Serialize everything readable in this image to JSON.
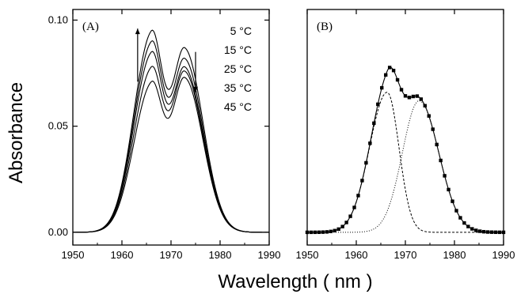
{
  "figure": {
    "ylabel": "Absorbance",
    "xlabel": "Wavelength ( nm )"
  },
  "chart_data": [
    {
      "type": "line",
      "panel_label": "(A)",
      "xlim": [
        1950,
        1990
      ],
      "ylim": [
        -0.006,
        0.105
      ],
      "x_ticks": [
        "1950",
        "1960",
        "1970",
        "1980",
        "1990"
      ],
      "y_ticks": [
        "0.00",
        "0.05",
        "0.10"
      ],
      "y_tick_values": [
        0.0,
        0.05,
        0.1
      ],
      "legend_entries": [
        "5 °C",
        "15 °C",
        "25 °C",
        "35 °C",
        "45 °C"
      ],
      "series": [
        {
          "name": "5 °C",
          "peak1": {
            "x": 1966.0,
            "y": 0.095
          },
          "valley": {
            "x": 1969.5,
            "y": 0.072
          },
          "peak2": {
            "x": 1972.8,
            "y": 0.087
          }
        },
        {
          "name": "15 °C",
          "peak1": {
            "x": 1966.0,
            "y": 0.09
          },
          "valley": {
            "x": 1969.6,
            "y": 0.071
          },
          "peak2": {
            "x": 1972.8,
            "y": 0.082
          }
        },
        {
          "name": "25 °C",
          "peak1": {
            "x": 1966.0,
            "y": 0.085
          },
          "valley": {
            "x": 1969.7,
            "y": 0.071
          },
          "peak2": {
            "x": 1972.8,
            "y": 0.078
          }
        },
        {
          "name": "35 °C",
          "peak1": {
            "x": 1966.0,
            "y": 0.078
          },
          "valley": {
            "x": 1969.8,
            "y": 0.07
          },
          "peak2": {
            "x": 1972.8,
            "y": 0.076
          }
        },
        {
          "name": "45 °C",
          "peak1": {
            "x": 1966.0,
            "y": 0.071
          },
          "valley": {
            "x": 1970.0,
            "y": 0.07
          },
          "peak2": {
            "x": 1972.8,
            "y": 0.073
          }
        }
      ],
      "arrows": [
        {
          "direction": "up",
          "x": 1963.2,
          "y_from": 0.071,
          "y_to": 0.096
        },
        {
          "direction": "down",
          "x": 1975.0,
          "y_from": 0.085,
          "y_to": 0.066
        }
      ]
    },
    {
      "type": "line",
      "panel_label": "(B)",
      "xlim": [
        1950,
        1990
      ],
      "ylim": [
        -0.006,
        0.105
      ],
      "x_ticks": [
        "1950",
        "1960",
        "1970",
        "1980",
        "1990"
      ],
      "series": [
        {
          "name": "",
          "style": "solid-with-squares",
          "role": "measured + fit",
          "peak1": {
            "x": 1966.3,
            "y": 0.085
          },
          "valley": {
            "x": 1969.8,
            "y": 0.072
          },
          "peak2": {
            "x": 1972.6,
            "y": 0.077
          }
        },
        {
          "name": "",
          "style": "dashed",
          "role": "component 1",
          "center": 1966.3,
          "height": 0.066
        },
        {
          "name": "",
          "style": "dotted",
          "role": "component 2",
          "center": 1972.8,
          "height": 0.062
        }
      ]
    }
  ]
}
